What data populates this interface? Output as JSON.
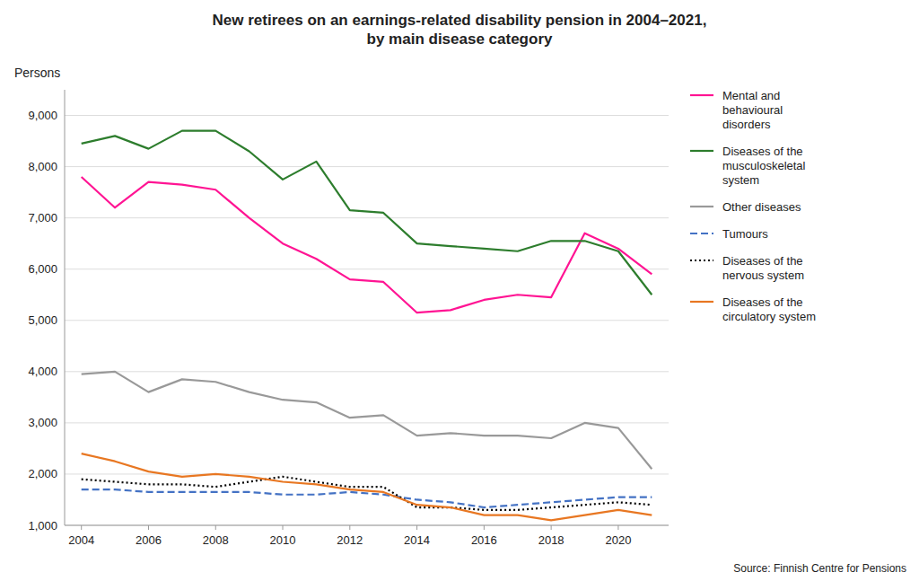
{
  "chart_data": {
    "type": "line",
    "title": "New retirees on an earnings-related disability pension in 2004–2021,\nby main disease category",
    "ylabel": "Persons",
    "source": "Source: Finnish Centre for Pensions",
    "x": [
      2004,
      2005,
      2006,
      2007,
      2008,
      2009,
      2010,
      2011,
      2012,
      2013,
      2014,
      2015,
      2016,
      2017,
      2018,
      2019,
      2020,
      2021
    ],
    "series": [
      {
        "name": "Mental and\nbehavioural\ndisorders",
        "color": "#FF1493",
        "line_style": "solid",
        "values": [
          7800,
          7200,
          7700,
          7650,
          7550,
          7000,
          6500,
          6200,
          5800,
          5750,
          5150,
          5200,
          5400,
          5500,
          5450,
          6700,
          6400,
          5900
        ]
      },
      {
        "name": "Diseases of the\nmusculoskeletal\nsystem",
        "color": "#2D7D2D",
        "line_style": "solid",
        "values": [
          8450,
          8600,
          8350,
          8700,
          8700,
          8300,
          7750,
          8100,
          7150,
          7100,
          6500,
          6450,
          6400,
          6350,
          6550,
          6550,
          6350,
          5500
        ]
      },
      {
        "name": "Other diseases",
        "color": "#999999",
        "line_style": "solid",
        "values": [
          3950,
          4000,
          3600,
          3850,
          3800,
          3600,
          3450,
          3400,
          3100,
          3150,
          2750,
          2800,
          2750,
          2750,
          2700,
          3000,
          2900,
          2100
        ]
      },
      {
        "name": "Tumours",
        "color": "#4472C4",
        "line_style": "dashed",
        "values": [
          1700,
          1700,
          1650,
          1650,
          1650,
          1650,
          1600,
          1600,
          1650,
          1600,
          1500,
          1450,
          1350,
          1400,
          1450,
          1500,
          1550,
          1550
        ]
      },
      {
        "name": "Diseases of the\nnervous system",
        "color": "#000000",
        "line_style": "dotted",
        "values": [
          1900,
          1850,
          1800,
          1800,
          1750,
          1850,
          1950,
          1850,
          1750,
          1750,
          1350,
          1350,
          1300,
          1300,
          1350,
          1400,
          1450,
          1400
        ]
      },
      {
        "name": "Diseases of the\ncirculatory system",
        "color": "#E87722",
        "line_style": "solid",
        "values": [
          2400,
          2250,
          2050,
          1950,
          2000,
          1950,
          1850,
          1800,
          1700,
          1650,
          1400,
          1350,
          1200,
          1200,
          1100,
          1200,
          1300,
          1200
        ]
      }
    ],
    "xlim": [
      2003.5,
      2021.5
    ],
    "xticks": [
      2004,
      2006,
      2008,
      2010,
      2012,
      2014,
      2016,
      2018,
      2020
    ],
    "ylim": [
      1000,
      9500
    ],
    "yticks": [
      {
        "value": 1000,
        "label": "1,000"
      },
      {
        "value": 2000,
        "label": "2,000"
      },
      {
        "value": 3000,
        "label": "3,000"
      },
      {
        "value": 4000,
        "label": "4,000"
      },
      {
        "value": 5000,
        "label": "5,000"
      },
      {
        "value": 6000,
        "label": "6,000"
      },
      {
        "value": 7000,
        "label": "7,000"
      },
      {
        "value": 8000,
        "label": "8,000"
      },
      {
        "value": 9000,
        "label": "9,000"
      }
    ],
    "grid": true,
    "legend": "right"
  }
}
